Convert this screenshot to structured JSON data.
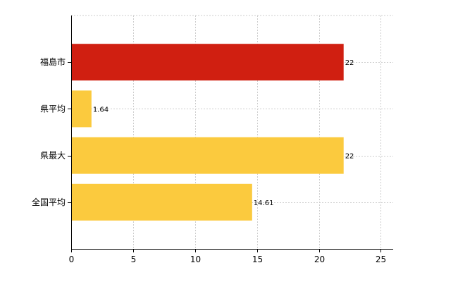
{
  "chart_data": {
    "type": "bar",
    "orientation": "horizontal",
    "categories": [
      "福島市",
      "県平均",
      "県最大",
      "全国平均"
    ],
    "values": [
      22,
      1.64,
      22,
      14.61
    ],
    "data_labels": [
      "22",
      "1.64",
      "22",
      "14.61"
    ],
    "xlim": [
      0,
      26
    ],
    "x_ticks": [
      0,
      5,
      10,
      15,
      20,
      25
    ],
    "grid": true,
    "title": "",
    "xlabel": "",
    "ylabel": "",
    "colors": {
      "highlight": "#d01f11",
      "default": "#fbca3e"
    },
    "bar_colors": [
      "highlight",
      "default",
      "default",
      "default"
    ]
  }
}
